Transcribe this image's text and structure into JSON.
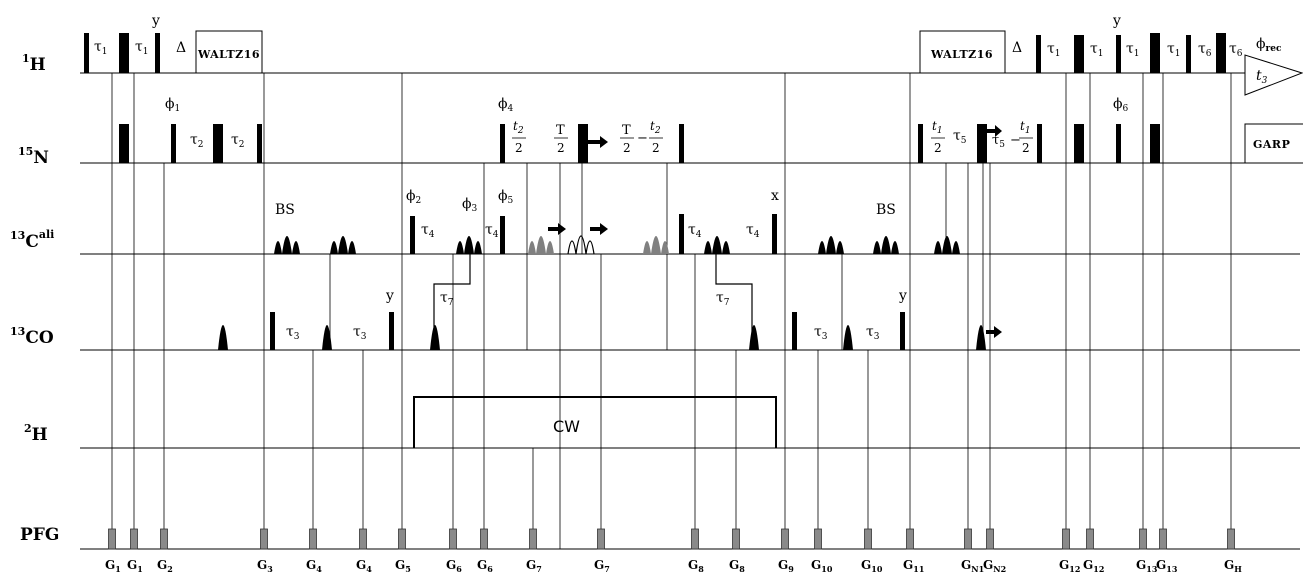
{
  "channels": [
    {
      "id": "h1",
      "mass": "1",
      "nucleus": "H",
      "super": ""
    },
    {
      "id": "n15",
      "mass": "15",
      "nucleus": "N",
      "super": ""
    },
    {
      "id": "cali",
      "mass": "13",
      "nucleus": "C",
      "super": "ali"
    },
    {
      "id": "co",
      "mass": "13",
      "nucleus": "CO",
      "super": ""
    },
    {
      "id": "h2",
      "mass": "2",
      "nucleus": "H",
      "super": ""
    },
    {
      "id": "pfg",
      "mass": "",
      "nucleus": "PFG",
      "super": ""
    }
  ],
  "boxes": {
    "waltz_left": "WALTZ16",
    "waltz_right": "WALTZ16",
    "garp": "GARP",
    "cw": "CW"
  },
  "annotations": {
    "tau": "τ",
    "delta": "Δ",
    "phi": "ϕ",
    "y": "y",
    "x": "x",
    "bs": "BS",
    "t": "t",
    "T": "T",
    "minus": "−",
    "two": "2",
    "rec": "rec",
    "sub1": "1",
    "sub2": "2",
    "sub3": "3",
    "sub4": "4",
    "sub5": "5",
    "sub6": "6",
    "sub7": "7"
  },
  "gradients": [
    {
      "main": "G",
      "sub": "1"
    },
    {
      "main": "G",
      "sub": "1"
    },
    {
      "main": "G",
      "sub": "2"
    },
    {
      "main": "G",
      "sub": "3"
    },
    {
      "main": "G",
      "sub": "4"
    },
    {
      "main": "G",
      "sub": "4"
    },
    {
      "main": "G",
      "sub": "5"
    },
    {
      "main": "G",
      "sub": "6"
    },
    {
      "main": "G",
      "sub": "6"
    },
    {
      "main": "G",
      "sub": "7"
    },
    {
      "main": "G",
      "sub": "7"
    },
    {
      "main": "G",
      "sub": "8"
    },
    {
      "main": "G",
      "sub": "8"
    },
    {
      "main": "G",
      "sub": "9"
    },
    {
      "main": "G",
      "sub": "10"
    },
    {
      "main": "G",
      "sub": "10"
    },
    {
      "main": "G",
      "sub": "11"
    },
    {
      "main": "G",
      "sub": "N1"
    },
    {
      "main": "G",
      "sub": "N2"
    },
    {
      "main": "G",
      "sub": "12"
    },
    {
      "main": "G",
      "sub": "12"
    },
    {
      "main": "G",
      "sub": "13"
    },
    {
      "main": "G",
      "sub": "13"
    },
    {
      "main": "G",
      "sub": "H"
    }
  ]
}
